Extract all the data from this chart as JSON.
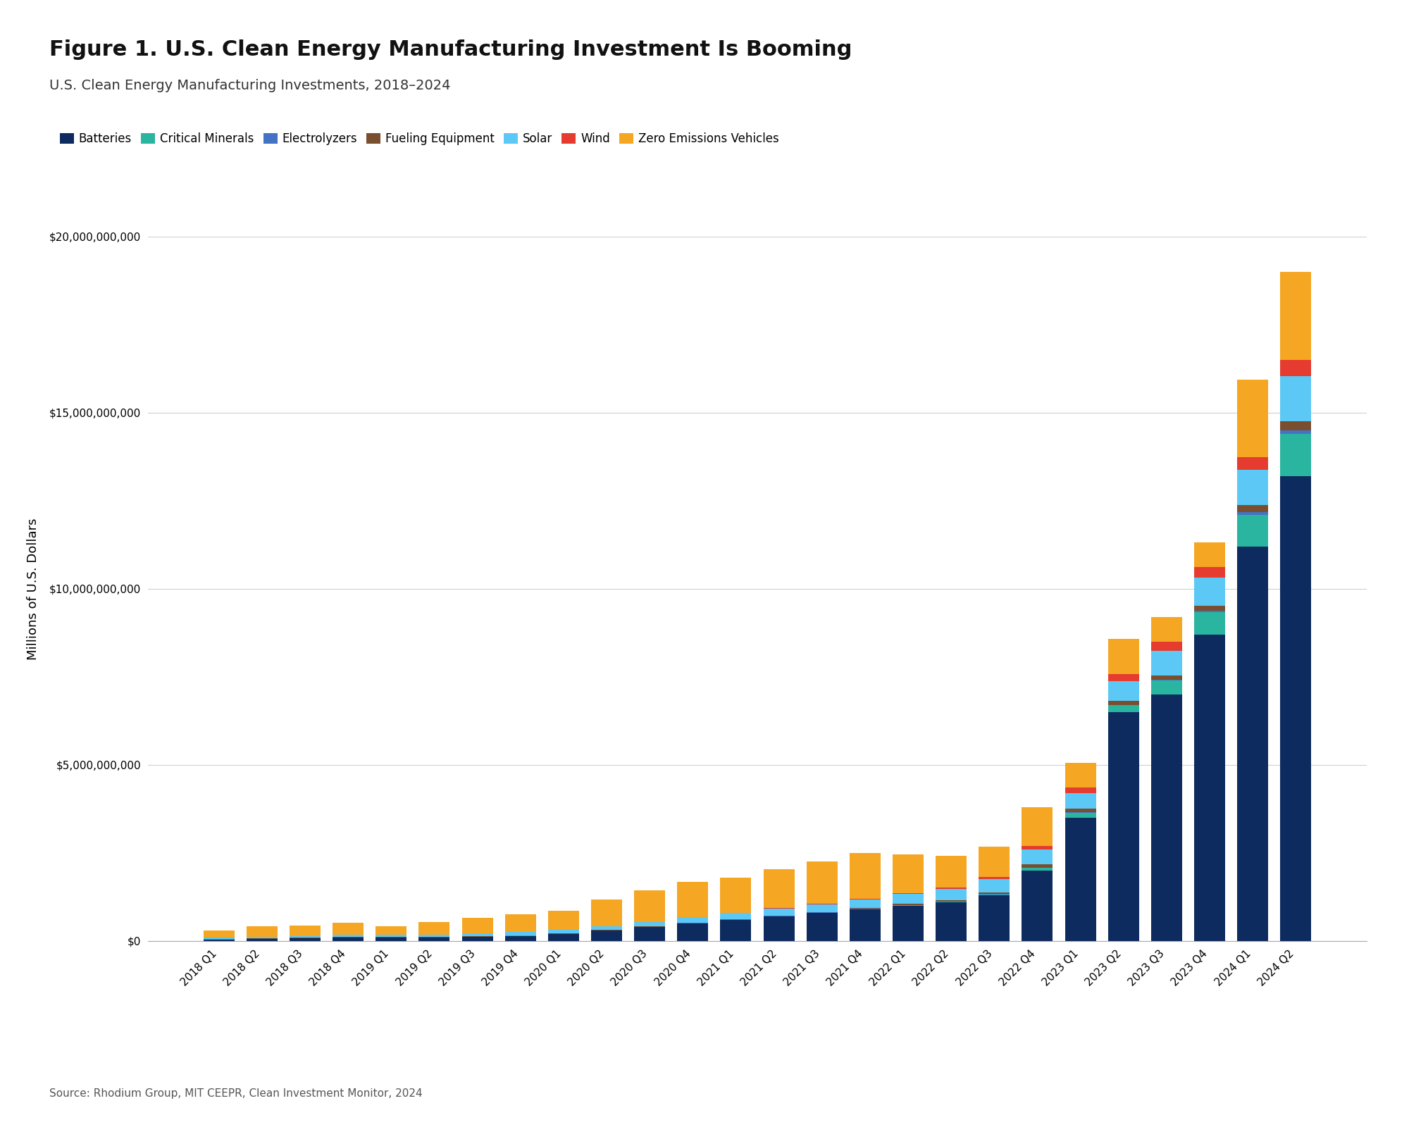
{
  "title": "Figure 1. U.S. Clean Energy Manufacturing Investment Is Booming",
  "subtitle": "U.S. Clean Energy Manufacturing Investments, 2018–2024",
  "source": "Source: Rhodium Group, MIT CEEPR, Clean Investment Monitor, 2024",
  "ylabel": "Millions of U.S. Dollars",
  "background_color": "#ffffff",
  "categories": [
    "2018 Q1",
    "2018 Q2",
    "2018 Q3",
    "2018 Q4",
    "2019 Q1",
    "2019 Q2",
    "2019 Q3",
    "2019 Q4",
    "2020 Q1",
    "2020 Q2",
    "2020 Q3",
    "2020 Q4",
    "2021 Q1",
    "2021 Q2",
    "2021 Q3",
    "2021 Q4",
    "2022 Q1",
    "2022 Q2",
    "2022 Q3",
    "2022 Q4",
    "2023 Q1",
    "2023 Q2",
    "2023 Q3",
    "2023 Q4",
    "2024 Q1",
    "2024 Q2"
  ],
  "series": {
    "Batteries": [
      50000000,
      60000000,
      80000000,
      100000000,
      100000000,
      100000000,
      120000000,
      150000000,
      200000000,
      300000000,
      400000000,
      500000000,
      600000000,
      700000000,
      800000000,
      900000000,
      1000000000,
      1100000000,
      1300000000,
      2000000000,
      3500000000,
      6500000000,
      7000000000,
      8700000000,
      11200000000,
      13200000000
    ],
    "Critical Minerals": [
      5000000,
      5000000,
      5000000,
      5000000,
      5000000,
      5000000,
      5000000,
      5000000,
      5000000,
      5000000,
      5000000,
      10000000,
      10000000,
      10000000,
      10000000,
      10000000,
      20000000,
      20000000,
      30000000,
      80000000,
      150000000,
      200000000,
      400000000,
      650000000,
      900000000,
      1200000000
    ],
    "Electrolyzers": [
      3000000,
      3000000,
      3000000,
      3000000,
      3000000,
      3000000,
      3000000,
      3000000,
      3000000,
      3000000,
      3000000,
      3000000,
      3000000,
      3000000,
      3000000,
      3000000,
      5000000,
      5000000,
      5000000,
      5000000,
      10000000,
      10000000,
      15000000,
      30000000,
      80000000,
      100000000
    ],
    "Fueling Equipment": [
      5000000,
      5000000,
      5000000,
      5000000,
      5000000,
      5000000,
      5000000,
      5000000,
      5000000,
      5000000,
      5000000,
      10000000,
      10000000,
      15000000,
      15000000,
      20000000,
      30000000,
      40000000,
      50000000,
      100000000,
      100000000,
      120000000,
      130000000,
      150000000,
      200000000,
      250000000
    ],
    "Solar": [
      30000000,
      40000000,
      50000000,
      60000000,
      60000000,
      70000000,
      80000000,
      90000000,
      100000000,
      110000000,
      120000000,
      150000000,
      170000000,
      200000000,
      220000000,
      250000000,
      280000000,
      320000000,
      380000000,
      420000000,
      450000000,
      550000000,
      700000000,
      800000000,
      1000000000,
      1300000000
    ],
    "Wind": [
      5000000,
      5000000,
      5000000,
      5000000,
      5000000,
      5000000,
      5000000,
      5000000,
      5000000,
      5000000,
      5000000,
      10000000,
      10000000,
      10000000,
      20000000,
      20000000,
      30000000,
      40000000,
      60000000,
      100000000,
      150000000,
      200000000,
      250000000,
      300000000,
      350000000,
      450000000
    ],
    "Zero Emissions Vehicles": [
      200000000,
      300000000,
      300000000,
      350000000,
      250000000,
      350000000,
      450000000,
      500000000,
      550000000,
      750000000,
      900000000,
      1000000000,
      1000000000,
      1100000000,
      1200000000,
      1300000000,
      1100000000,
      900000000,
      850000000,
      1100000000,
      700000000,
      1000000000,
      700000000,
      700000000,
      2200000000,
      2500000000
    ]
  },
  "colors": {
    "Batteries": "#0d2b5e",
    "Critical Minerals": "#2ab5a0",
    "Electrolyzers": "#4472c4",
    "Fueling Equipment": "#7a4f30",
    "Solar": "#5bc8f5",
    "Wind": "#e63c2f",
    "Zero Emissions Vehicles": "#f5a623"
  },
  "ylim": [
    0,
    20000000000
  ],
  "yticks": [
    0,
    5000000000,
    10000000000,
    15000000000,
    20000000000
  ],
  "title_fontsize": 22,
  "subtitle_fontsize": 14,
  "legend_fontsize": 12,
  "tick_fontsize": 11,
  "ylabel_fontsize": 13
}
